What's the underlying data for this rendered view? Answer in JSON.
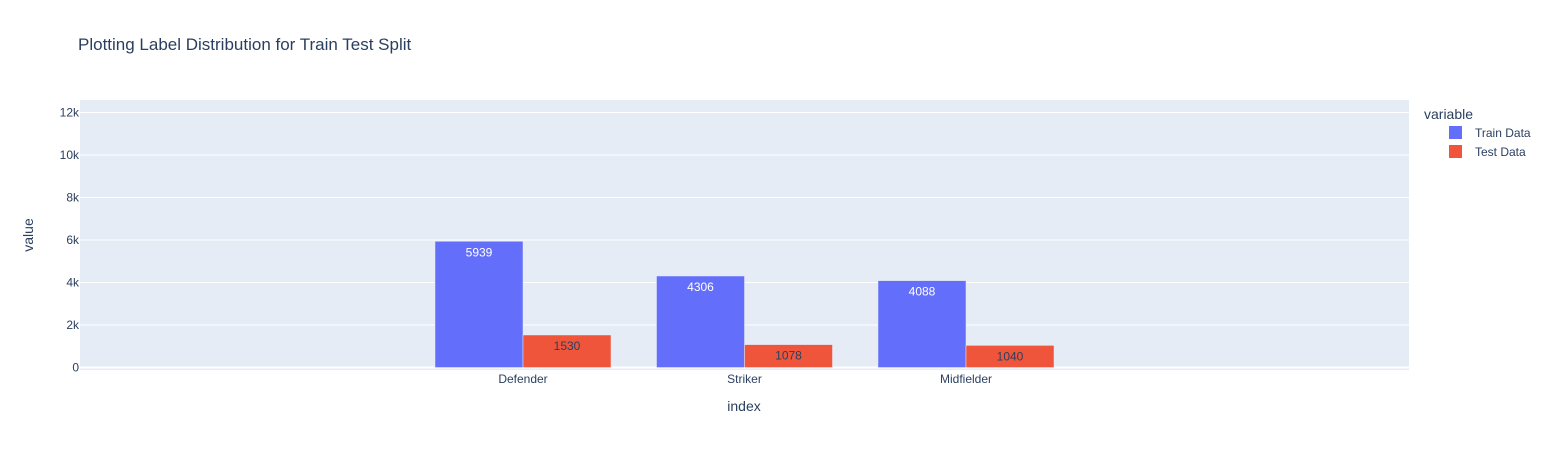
{
  "chart_data": {
    "type": "bar",
    "title": "Plotting Label Distribution for Train Test Split",
    "xlabel": "index",
    "ylabel": "value",
    "categories": [
      "Defender",
      "Striker",
      "Midfielder"
    ],
    "series": [
      {
        "name": "Train Data",
        "values": [
          5939,
          4306,
          4088
        ],
        "color": "#636efa",
        "label_color": "#ffffff"
      },
      {
        "name": "Test Data",
        "values": [
          1530,
          1078,
          1040
        ],
        "color": "#ef553b",
        "label_color": "#2a3f5f"
      }
    ],
    "ylim": [
      0,
      12400
    ],
    "yticks": [
      0,
      2000,
      4000,
      6000,
      8000,
      10000,
      12000
    ],
    "ytick_labels": [
      "0",
      "2k",
      "4k",
      "6k",
      "8k",
      "10k",
      "12k"
    ],
    "grid": true,
    "legend": {
      "title": "variable",
      "position": "right"
    },
    "plot_background": "#e5ecf6"
  }
}
